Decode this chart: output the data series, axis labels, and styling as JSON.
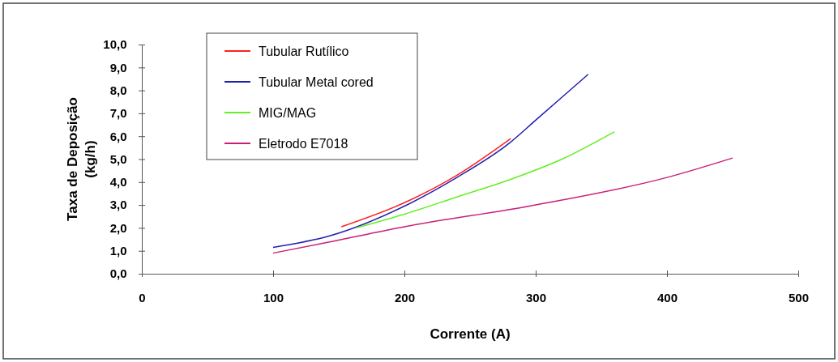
{
  "chart_data": {
    "type": "line",
    "xlabel": "Corrente (A)",
    "ylabel": "Taxa de Deposição\n(kg/h)",
    "xlim": [
      0,
      500
    ],
    "xticks": [
      0,
      100,
      200,
      300,
      400,
      500
    ],
    "ylim": [
      0,
      10
    ],
    "yticks": [
      {
        "value": 0,
        "label": "0,0"
      },
      {
        "value": 1,
        "label": "1,0"
      },
      {
        "value": 2,
        "label": "2,0"
      },
      {
        "value": 3,
        "label": "3,0"
      },
      {
        "value": 4,
        "label": "4,0"
      },
      {
        "value": 5,
        "label": "5,0"
      },
      {
        "value": 6,
        "label": "6,0"
      },
      {
        "value": 7,
        "label": "7,0"
      },
      {
        "value": 8,
        "label": "8,0"
      },
      {
        "value": 9,
        "label": "9,0"
      },
      {
        "value": 10,
        "label": "10,0"
      }
    ],
    "grid": false,
    "legend": "top left",
    "line_style": "solid",
    "marker": "none",
    "series": [
      {
        "name": "Tubular Rutílico",
        "color": "#ff2020",
        "x": [
          152,
          200,
          240,
          281
        ],
        "values": [
          2.05,
          3.1,
          4.3,
          5.9
        ]
      },
      {
        "name": "Tubular Metal cored",
        "color": "#2020b0",
        "x": [
          100,
          143,
          200,
          240,
          280,
          300,
          340
        ],
        "values": [
          1.15,
          1.65,
          2.95,
          4.2,
          5.7,
          6.7,
          8.7
        ]
      },
      {
        "name": "MIG/MAG",
        "color": "#66ee22",
        "x": [
          163,
          200,
          240,
          280,
          320,
          360
        ],
        "values": [
          2.0,
          2.6,
          3.35,
          4.1,
          5.0,
          6.2
        ]
      },
      {
        "name": "Eletrodo E7018",
        "color": "#c8207a",
        "x": [
          100,
          140,
          200,
          300,
          400,
          450
        ],
        "values": [
          0.9,
          1.35,
          2.05,
          3.0,
          4.2,
          5.05
        ]
      }
    ]
  }
}
